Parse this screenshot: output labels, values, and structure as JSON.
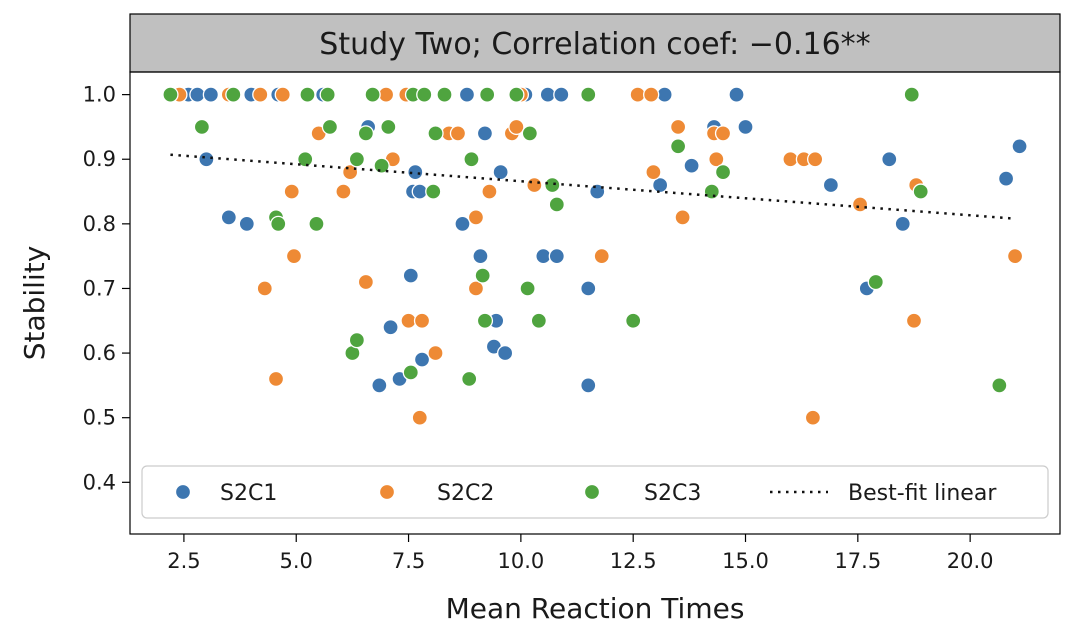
{
  "chart_data": {
    "type": "scatter",
    "title": "Study Two; Correlation coef: −0.16**",
    "xlabel": "Mean Reaction Times",
    "ylabel": "Stability",
    "xlim": [
      1.3,
      22.0
    ],
    "ylim": [
      0.32,
      1.035
    ],
    "x_ticks": [
      2.5,
      5.0,
      7.5,
      10.0,
      12.5,
      15.0,
      17.5,
      20.0
    ],
    "x_tick_labels": [
      "2.5",
      "5.0",
      "7.5",
      "10.0",
      "12.5",
      "15.0",
      "17.5",
      "20.0"
    ],
    "y_ticks": [
      0.4,
      0.5,
      0.6,
      0.7,
      0.8,
      0.9,
      1.0
    ],
    "y_tick_labels": [
      "0.4",
      "0.5",
      "0.6",
      "0.7",
      "0.8",
      "0.9",
      "1.0"
    ],
    "grid": false,
    "legend_position": "lower center",
    "legend": [
      "S2C1",
      "S2C2",
      "S2C3",
      "Best-fit linear"
    ],
    "colors": {
      "S2C1": "#3d76b0",
      "S2C2": "#ee8a35",
      "S2C3": "#4fa43f",
      "fit": "#111111",
      "title_band": "#c0c0c0"
    },
    "series": [
      {
        "name": "S2C1",
        "points": [
          [
            2.6,
            1.0
          ],
          [
            2.8,
            1.0
          ],
          [
            3.0,
            0.9
          ],
          [
            3.1,
            1.0
          ],
          [
            3.5,
            0.81
          ],
          [
            3.9,
            0.8
          ],
          [
            4.0,
            1.0
          ],
          [
            4.6,
            1.0
          ],
          [
            5.6,
            1.0
          ],
          [
            6.6,
            0.95
          ],
          [
            6.85,
            0.55
          ],
          [
            7.1,
            0.64
          ],
          [
            7.3,
            0.56
          ],
          [
            7.55,
            0.72
          ],
          [
            7.6,
            0.85
          ],
          [
            7.65,
            0.88
          ],
          [
            7.75,
            0.85
          ],
          [
            7.8,
            0.59
          ],
          [
            8.7,
            0.8
          ],
          [
            8.8,
            1.0
          ],
          [
            9.1,
            0.75
          ],
          [
            9.2,
            0.94
          ],
          [
            9.4,
            0.61
          ],
          [
            9.45,
            0.65
          ],
          [
            9.55,
            0.88
          ],
          [
            9.65,
            0.6
          ],
          [
            10.1,
            1.0
          ],
          [
            10.5,
            0.75
          ],
          [
            10.6,
            1.0
          ],
          [
            10.8,
            0.75
          ],
          [
            10.9,
            1.0
          ],
          [
            11.5,
            0.7
          ],
          [
            11.5,
            0.55
          ],
          [
            11.7,
            0.85
          ],
          [
            13.1,
            0.86
          ],
          [
            13.2,
            1.0
          ],
          [
            13.8,
            0.89
          ],
          [
            14.3,
            0.95
          ],
          [
            14.8,
            1.0
          ],
          [
            15.0,
            0.95
          ],
          [
            16.9,
            0.86
          ],
          [
            17.7,
            0.7
          ],
          [
            18.2,
            0.9
          ],
          [
            18.5,
            0.8
          ],
          [
            20.8,
            0.87
          ],
          [
            21.1,
            0.92
          ]
        ]
      },
      {
        "name": "S2C2",
        "points": [
          [
            2.4,
            1.0
          ],
          [
            3.5,
            1.0
          ],
          [
            4.2,
            1.0
          ],
          [
            4.3,
            0.7
          ],
          [
            4.55,
            0.56
          ],
          [
            4.7,
            1.0
          ],
          [
            4.9,
            0.85
          ],
          [
            4.95,
            0.75
          ],
          [
            5.5,
            0.94
          ],
          [
            6.05,
            0.85
          ],
          [
            6.2,
            0.88
          ],
          [
            6.55,
            0.71
          ],
          [
            7.0,
            1.0
          ],
          [
            7.15,
            0.9
          ],
          [
            7.45,
            1.0
          ],
          [
            7.5,
            0.65
          ],
          [
            7.75,
            0.5
          ],
          [
            7.8,
            0.65
          ],
          [
            8.1,
            0.6
          ],
          [
            8.4,
            0.94
          ],
          [
            8.6,
            0.94
          ],
          [
            9.0,
            0.81
          ],
          [
            9.0,
            0.7
          ],
          [
            9.3,
            0.85
          ],
          [
            9.8,
            0.94
          ],
          [
            9.9,
            0.95
          ],
          [
            10.0,
            1.0
          ],
          [
            10.2,
            0.94
          ],
          [
            10.3,
            0.86
          ],
          [
            11.8,
            0.75
          ],
          [
            12.6,
            1.0
          ],
          [
            12.9,
            1.0
          ],
          [
            12.95,
            0.88
          ],
          [
            13.5,
            0.95
          ],
          [
            13.6,
            0.81
          ],
          [
            14.3,
            0.94
          ],
          [
            14.35,
            0.9
          ],
          [
            14.5,
            0.94
          ],
          [
            16.0,
            0.9
          ],
          [
            16.3,
            0.9
          ],
          [
            16.55,
            0.9
          ],
          [
            16.5,
            0.5
          ],
          [
            17.55,
            0.83
          ],
          [
            18.75,
            0.65
          ],
          [
            18.8,
            0.86
          ],
          [
            21.0,
            0.75
          ]
        ]
      },
      {
        "name": "S2C3",
        "points": [
          [
            2.2,
            1.0
          ],
          [
            2.9,
            0.95
          ],
          [
            3.6,
            1.0
          ],
          [
            4.55,
            0.81
          ],
          [
            4.6,
            0.8
          ],
          [
            5.2,
            0.9
          ],
          [
            5.25,
            1.0
          ],
          [
            5.45,
            0.8
          ],
          [
            5.7,
            1.0
          ],
          [
            5.75,
            0.95
          ],
          [
            6.25,
            0.6
          ],
          [
            6.35,
            0.62
          ],
          [
            6.35,
            0.9
          ],
          [
            6.55,
            0.94
          ],
          [
            6.7,
            1.0
          ],
          [
            6.9,
            0.89
          ],
          [
            7.05,
            0.95
          ],
          [
            7.55,
            0.57
          ],
          [
            7.6,
            1.0
          ],
          [
            7.85,
            1.0
          ],
          [
            8.05,
            0.85
          ],
          [
            8.1,
            0.94
          ],
          [
            8.3,
            1.0
          ],
          [
            8.85,
            0.56
          ],
          [
            8.9,
            0.9
          ],
          [
            9.15,
            0.72
          ],
          [
            9.2,
            0.65
          ],
          [
            9.25,
            1.0
          ],
          [
            9.9,
            1.0
          ],
          [
            10.15,
            0.7
          ],
          [
            10.2,
            0.94
          ],
          [
            10.4,
            0.65
          ],
          [
            10.7,
            0.86
          ],
          [
            10.8,
            0.83
          ],
          [
            11.5,
            1.0
          ],
          [
            12.5,
            0.65
          ],
          [
            13.5,
            0.92
          ],
          [
            14.25,
            0.85
          ],
          [
            14.5,
            0.88
          ],
          [
            17.9,
            0.71
          ],
          [
            18.7,
            1.0
          ],
          [
            18.9,
            0.85
          ],
          [
            20.65,
            0.55
          ]
        ]
      }
    ],
    "fit_line": {
      "name": "Best-fit linear",
      "x": [
        2.2,
        21.0
      ],
      "y": [
        0.907,
        0.808
      ]
    }
  }
}
